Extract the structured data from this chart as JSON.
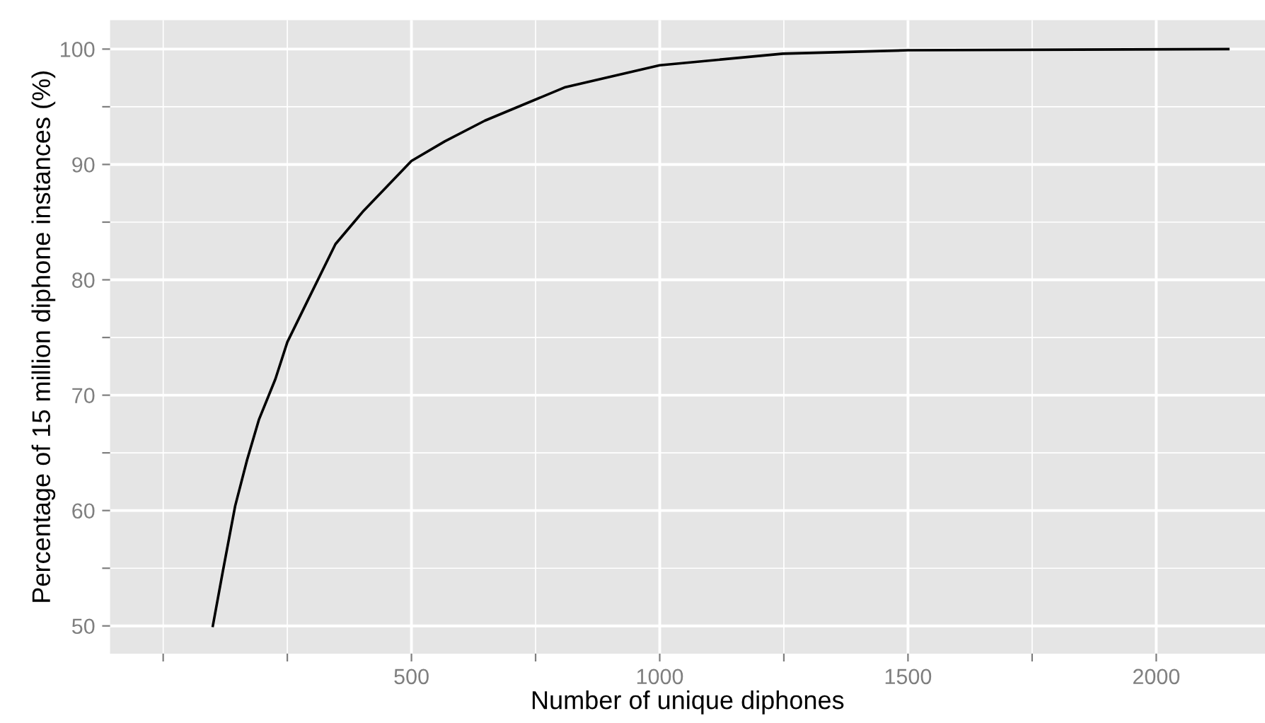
{
  "chart_data": {
    "type": "line",
    "xlabel": "Number of unique diphones",
    "ylabel": "Percentage of 15 million diphone instances (%)",
    "x": [
      100,
      120,
      145,
      169,
      193,
      226,
      250,
      291,
      347,
      404,
      500,
      567,
      648,
      810,
      1000,
      1248,
      1500,
      2145
    ],
    "series": [
      {
        "color": "#000000",
        "values": [
          50,
          54.7,
          60.4,
          64.4,
          67.9,
          71.4,
          74.6,
          78.2,
          83.1,
          86.0,
          90.3,
          92.0,
          93.8,
          96.7,
          98.6,
          99.6,
          99.9,
          100
        ]
      }
    ],
    "xlim": [
      -107,
      2219
    ],
    "ylim": [
      47.6,
      102.5
    ],
    "xticks": [
      {
        "value": 0,
        "label": null
      },
      {
        "value": 250,
        "label": null
      },
      500,
      {
        "value": 750,
        "label": null
      },
      1000,
      {
        "value": 1250,
        "label": null
      },
      1500,
      {
        "value": 1750,
        "label": null
      },
      2000
    ],
    "yticks": [
      50,
      {
        "value": 55,
        "label": null
      },
      60,
      {
        "value": 65,
        "label": null
      },
      70,
      {
        "value": 75,
        "label": null
      },
      80,
      {
        "value": 85,
        "label": null
      },
      90,
      {
        "value": 95,
        "label": null
      },
      100
    ],
    "grid": true,
    "line_style": "solid"
  }
}
